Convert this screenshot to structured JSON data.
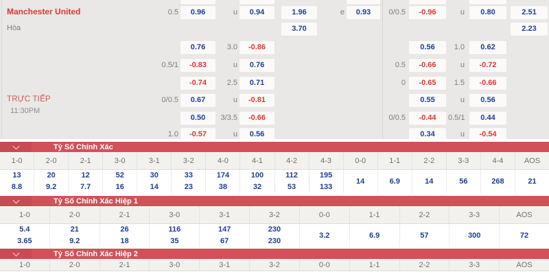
{
  "colors": {
    "panel_bg": "#e9e8e6",
    "odds_blue": "#1d3e96",
    "odds_red": "#e5332d",
    "label_gray": "#7d7d7d",
    "team_red": "#dc3732",
    "section_bar_red": "#d05158",
    "chevron_box_red": "#c74b53"
  },
  "odds_panel": {
    "team_home": "Manchester United",
    "draw_label": "Hòa",
    "live_label": "TRỰC TIẾP",
    "kickoff_time": "11:30PM",
    "cut_row_slots": [
      "l_b1",
      "l_b2",
      "l_b3",
      "r_b1",
      "r_b2"
    ],
    "rows": [
      {
        "cells": [
          {
            "slot": "l_hc",
            "kind": "label",
            "text": "0.5"
          },
          {
            "slot": "l_b1",
            "kind": "box",
            "text": "0.96",
            "color": "blue"
          },
          {
            "slot": "l_ou",
            "kind": "label",
            "text": "u"
          },
          {
            "slot": "l_b2",
            "kind": "box",
            "text": "0.94",
            "color": "blue"
          },
          {
            "slot": "l_1x2",
            "kind": "box",
            "text": "1.96",
            "color": "blue"
          },
          {
            "slot": "l_e",
            "kind": "label",
            "text": "e"
          },
          {
            "slot": "l_b3",
            "kind": "box",
            "text": "0.93",
            "color": "blue"
          },
          {
            "slot": "r_hc",
            "kind": "label",
            "text": "0/0.5"
          },
          {
            "slot": "r_b1",
            "kind": "box",
            "text": "-0.96",
            "color": "red"
          },
          {
            "slot": "r_ou",
            "kind": "label",
            "text": "u"
          },
          {
            "slot": "r_b2",
            "kind": "box",
            "text": "0.80",
            "color": "blue"
          },
          {
            "slot": "r_1x2",
            "kind": "box",
            "text": "2.51",
            "color": "blue"
          }
        ]
      },
      {
        "cells": [
          {
            "slot": "l_1x2",
            "kind": "box",
            "text": "3.70",
            "color": "blue"
          },
          {
            "slot": "r_1x2",
            "kind": "box",
            "text": "2.23",
            "color": "blue"
          }
        ]
      },
      {
        "cells": [
          {
            "slot": "l_b1",
            "kind": "box",
            "text": "0.76",
            "color": "blue"
          },
          {
            "slot": "l_ou",
            "kind": "label",
            "text": "3.0"
          },
          {
            "slot": "l_b2",
            "kind": "box",
            "text": "-0.86",
            "color": "red"
          },
          {
            "slot": "r_b1",
            "kind": "box",
            "text": "0.56",
            "color": "blue"
          },
          {
            "slot": "r_ou",
            "kind": "label",
            "text": "1.0"
          },
          {
            "slot": "r_b2",
            "kind": "box",
            "text": "0.62",
            "color": "blue"
          }
        ]
      },
      {
        "cells": [
          {
            "slot": "l_hc",
            "kind": "label",
            "text": "0.5/1"
          },
          {
            "slot": "l_b1",
            "kind": "box",
            "text": "-0.83",
            "color": "red"
          },
          {
            "slot": "l_ou",
            "kind": "label",
            "text": "u"
          },
          {
            "slot": "l_b2",
            "kind": "box",
            "text": "0.76",
            "color": "blue"
          },
          {
            "slot": "r_hc",
            "kind": "label",
            "text": "0.5"
          },
          {
            "slot": "r_b1",
            "kind": "box",
            "text": "-0.66",
            "color": "red"
          },
          {
            "slot": "r_ou",
            "kind": "label",
            "text": "u"
          },
          {
            "slot": "r_b2",
            "kind": "box",
            "text": "-0.72",
            "color": "red"
          }
        ]
      },
      {
        "cells": [
          {
            "slot": "l_b1",
            "kind": "box",
            "text": "-0.74",
            "color": "red"
          },
          {
            "slot": "l_ou",
            "kind": "label",
            "text": "2.5"
          },
          {
            "slot": "l_b2",
            "kind": "box",
            "text": "0.71",
            "color": "blue"
          },
          {
            "slot": "r_hc",
            "kind": "label",
            "text": "0"
          },
          {
            "slot": "r_b1",
            "kind": "box",
            "text": "-0.65",
            "color": "red"
          },
          {
            "slot": "r_ou",
            "kind": "label",
            "text": "1.5"
          },
          {
            "slot": "r_b2",
            "kind": "box",
            "text": "-0.66",
            "color": "red"
          }
        ]
      },
      {
        "cells": [
          {
            "slot": "l_hc",
            "kind": "label",
            "text": "0/0.5"
          },
          {
            "slot": "l_b1",
            "kind": "box",
            "text": "0.67",
            "color": "blue"
          },
          {
            "slot": "l_ou",
            "kind": "label",
            "text": "u"
          },
          {
            "slot": "l_b2",
            "kind": "box",
            "text": "-0.81",
            "color": "red"
          },
          {
            "slot": "r_b1",
            "kind": "box",
            "text": "0.55",
            "color": "blue"
          },
          {
            "slot": "r_ou",
            "kind": "label",
            "text": "u"
          },
          {
            "slot": "r_b2",
            "kind": "box",
            "text": "0.56",
            "color": "blue"
          }
        ]
      },
      {
        "cells": [
          {
            "slot": "l_b1",
            "kind": "box",
            "text": "0.50",
            "color": "blue"
          },
          {
            "slot": "l_ou",
            "kind": "label",
            "text": "3/3.5"
          },
          {
            "slot": "l_b2",
            "kind": "box",
            "text": "-0.66",
            "color": "red"
          },
          {
            "slot": "r_hc",
            "kind": "label",
            "text": "0/0.5"
          },
          {
            "slot": "r_b1",
            "kind": "box",
            "text": "-0.44",
            "color": "red"
          },
          {
            "slot": "r_ou",
            "kind": "label",
            "text": "0.5/1"
          },
          {
            "slot": "r_b2",
            "kind": "box",
            "text": "0.44",
            "color": "blue"
          }
        ]
      },
      {
        "cells": [
          {
            "slot": "l_hc",
            "kind": "label",
            "text": "1.0"
          },
          {
            "slot": "l_b1",
            "kind": "box",
            "text": "-0.57",
            "color": "red"
          },
          {
            "slot": "l_ou",
            "kind": "label",
            "text": "u"
          },
          {
            "slot": "l_b2",
            "kind": "box",
            "text": "0.56",
            "color": "blue"
          },
          {
            "slot": "r_b1",
            "kind": "box",
            "text": "0.34",
            "color": "blue"
          },
          {
            "slot": "r_ou",
            "kind": "label",
            "text": "u"
          },
          {
            "slot": "r_b2",
            "kind": "box",
            "text": "-0.54",
            "color": "red"
          }
        ]
      }
    ]
  },
  "score_sections": [
    {
      "title": "Tỷ Số Chính Xác",
      "columns": [
        {
          "label": "1-0",
          "values": [
            "13",
            "8.8"
          ]
        },
        {
          "label": "2-0",
          "values": [
            "20",
            "9.2"
          ]
        },
        {
          "label": "2-1",
          "values": [
            "12",
            "7.7"
          ]
        },
        {
          "label": "3-0",
          "values": [
            "52",
            "16"
          ]
        },
        {
          "label": "3-1",
          "values": [
            "30",
            "14"
          ]
        },
        {
          "label": "3-2",
          "values": [
            "33",
            "23"
          ]
        },
        {
          "label": "4-0",
          "values": [
            "174",
            "38"
          ]
        },
        {
          "label": "4-1",
          "values": [
            "100",
            "32"
          ]
        },
        {
          "label": "4-2",
          "values": [
            "112",
            "53"
          ]
        },
        {
          "label": "4-3",
          "values": [
            "195",
            "133"
          ]
        },
        {
          "label": "0-0",
          "values": [
            "14"
          ]
        },
        {
          "label": "1-1",
          "values": [
            "6.9"
          ]
        },
        {
          "label": "2-2",
          "values": [
            "14"
          ]
        },
        {
          "label": "3-3",
          "values": [
            "56"
          ]
        },
        {
          "label": "4-4",
          "values": [
            "268"
          ]
        },
        {
          "label": "AOS",
          "values": [
            "21"
          ]
        }
      ]
    },
    {
      "title": "Tỷ Số Chính Xác Hiệp 1",
      "columns": [
        {
          "label": "1-0",
          "values": [
            "5.4",
            "3.65"
          ]
        },
        {
          "label": "2-0",
          "values": [
            "21",
            "9.2"
          ]
        },
        {
          "label": "2-1",
          "values": [
            "26",
            "18"
          ]
        },
        {
          "label": "3-0",
          "values": [
            "116",
            "35"
          ]
        },
        {
          "label": "3-1",
          "values": [
            "147",
            "67"
          ]
        },
        {
          "label": "3-2",
          "values": [
            "230",
            "230"
          ]
        },
        {
          "label": "0-0",
          "values": [
            "3.2"
          ]
        },
        {
          "label": "1-1",
          "values": [
            "6.9"
          ]
        },
        {
          "label": "2-2",
          "values": [
            "57"
          ]
        },
        {
          "label": "3-3",
          "values": [
            "300"
          ]
        },
        {
          "label": "AOS",
          "values": [
            "72"
          ]
        }
      ]
    },
    {
      "title": "Tỷ Số Chính Xác Hiệp 2",
      "columns": [
        {
          "label": "1-0",
          "values": []
        },
        {
          "label": "2-0",
          "values": []
        },
        {
          "label": "2-1",
          "values": []
        },
        {
          "label": "3-0",
          "values": []
        },
        {
          "label": "3-1",
          "values": []
        },
        {
          "label": "3-2",
          "values": []
        },
        {
          "label": "0-0",
          "values": []
        },
        {
          "label": "1-1",
          "values": []
        },
        {
          "label": "2-2",
          "values": []
        },
        {
          "label": "3-3",
          "values": []
        },
        {
          "label": "AOS",
          "values": []
        }
      ]
    }
  ]
}
